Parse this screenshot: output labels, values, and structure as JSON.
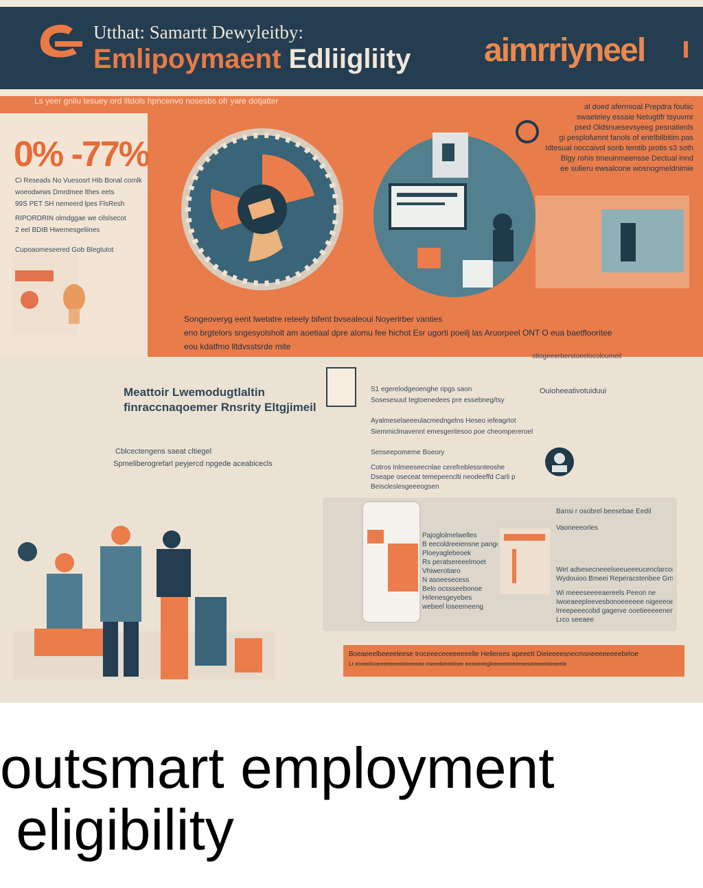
{
  "header": {
    "title_line1": "Utthat: Samartt Dewyleitby:",
    "title_line2_a": "Emlipoymaent ",
    "title_line2_b": "Edliigliity",
    "brand": "aimrriyneel"
  },
  "ticker": "Ls yeer gnilu tesuey ord lltdols hpncenvo nosesbs ofr yare dotjatter",
  "stat": {
    "value": "0% -77%",
    "lines": [
      "Ci Reseads No Vuesosrt HIb Bonal comlk",
      "woeodwrws Dmrdmee lthes eets",
      "99S PET SH nemeerd lpes FlsResh",
      "RIPORDRIN olmdggae we cilslsecot",
      "2 eel BDIB Hwemesgeliines",
      "Cupoaomeseered Gob Blegtutot"
    ]
  },
  "right_text": [
    "al doed aferrnioal Prepdra foutiic",
    "swaeteley essaie Netugtifr tsyuvmr",
    "psed Oldsnuesevsyeeg pesnatienls",
    "gi pesplofumnt fanols of entrlbilbitim.pas",
    "Idtesual noccaivol sonb temtib protis s3 soth",
    "Blgy rohis tmeuinmeensse Dectual innd",
    "ee sulieru ewsalcone wosnogmeldnimie"
  ],
  "mid_caption": [
    "Songeoveryg eent lwetatre reteely bifent bvsealeoui Noyerirber vanties",
    "eno brgtelors sngesyolsholt am aoetiaal dpre alomu fee hichot Esr ugorti poeilj las Aruorpeel ONT O eua baetflooritee",
    "eou kdatfmo lltdvsstsrde mite"
  ],
  "section": {
    "title_line1": "Meattoir Lwemodugtlaltin",
    "title_line2": "finraccnaqoemer Rnsrity Eltgjimeil",
    "sub": "Cblcectengens saeat cltiegel",
    "sub2": "Spmeliberogrefarl peyjercd npgede aceabicecls",
    "right_heading": "Ouioheeativotuiduui",
    "top_label": "stlogeeerberstoeelocoloumeit",
    "list_a": [
      "S1 egerelodgeoenghe ripgs saon",
      "Sosesesuut tegtoenedees pre essebneg/tsy"
    ],
    "list_b": [
      "Ayalmeselaeeeulacmedngelns Heseo iefeagrtot",
      "Siemmiclmavennt  emesgeritesoo poe cheompereroel"
    ],
    "list_c": "Senseepomeme Boeory",
    "list_d": [
      "Cotros Inlmeeseecnlae cerefreblessnteoshe",
      "Dseape oseceat temepeenclti neodeeffd Carli p",
      "Beiscleslesgeeeogsen"
    ]
  },
  "card": {
    "heading": "Bansi r osobrel beesebae Eedil",
    "sub": "Vaoneeeorles",
    "items": [
      "Pajoglolmelwelles",
      "B eecoldreeiensne pangetieaiedesc",
      "Ploeyaglebeoek",
      "Rs peratsereeelmoet",
      "Vhiwerotiaro",
      "N asoeesecess",
      "Belo ocssseebonoe",
      "Hrlenesgeyebes",
      "webeel loseemeeng"
    ],
    "right": [
      "Wet adsesecneeelseeueeeucenclarcom",
      "Wydouioo.Bmeei Reperacstenbee GrnTE",
      "Wi meeeseeeeaereels Peeon ne",
      "Iwoeaeepleevesbonoeeeeee nigeeeoeneeceeness",
      "lrreepeeecobd gagerve ooetieeeeenemece",
      "Lrco seeaee"
    ]
  },
  "footer": [
    "Boeaeeelbeeeeleese  troceeeceeeeeeeelle Hellerees apeeett Dieieeeesnecmsneeeeeeeebeloe",
    "Lr eceeelnoeeeeeeeeeleeeeee meeeleeeeleee  eeeeeeegleeeeeeeeeeeeseeeeeteeeeele"
  ],
  "caption": {
    "line1": "outsmart employment",
    "line2": " eligibility"
  },
  "colors": {
    "navy": "#243d50",
    "orange": "#e97c4b",
    "cream": "#f1e8dc",
    "teal": "#4f7d8f"
  }
}
